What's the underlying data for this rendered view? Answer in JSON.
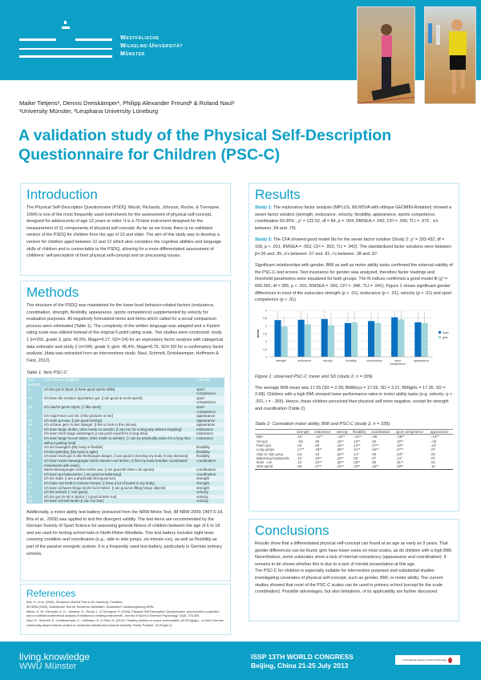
{
  "header": {
    "university": [
      "Westfälische",
      "Wilhelms-Universität",
      "Münster"
    ]
  },
  "authors": {
    "names": "Maike Tietjens¹, Dennis Dreiskämper¹,  Philipp Alexander Freund² & Roland Naul¹",
    "affiliations": "¹University Münster, ²Leuphana University Lüneburg"
  },
  "title": "A validation study of the Physical Self-Description Questionnaire for Children (PSC-C)",
  "introduction": {
    "heading": "Introduction",
    "text": "The Physical Self-Description Questionnaire (PSDQ; Marsh, Richards, Johnson, Roche, & Tremayne, 1994) is one of the most frequently used instruments for the assessment of physical self-concept, designed for adolescents of age 12 years or older. It is a 70-item instrument designed for the measurement of 11 components of physical self-concept. As far as we know, there is no validated version of the PSDQ for children from the age of 10 and older. The aim of this study was to develop a version for children aged between 10 and 12 which also considers the cognitive abilities and language skills of children and is connectable to the PSDQ, allowing for a more differentiated assessment of childrens' self-perception of their physical self-concept and on processing issues."
  },
  "methods": {
    "heading": "Methods",
    "text": "The structure of the PSDQ was maintained for the lower level behavior-related factors (endurance, coordination, strength, flexibility, appearance, sports competence) supplemented by velocity for evaluation purposes. All negatively formulated items and items which called for a social comparison process were eliminated (Table 1). The complexity of the written language was adapted and a 4-point rating scale was utilized instead of the original 6-point rating scale. Two studies were conducted: study 1 (n=255, grade 3, girls: 45.5%, Mage=9.27, SD=.54) for an exploratory factor analysis with categorical data estimator and study 2 (n=349, grade 3; girls: 45.4%, Mage=8.75, SD=.50) for a confirmatory factor analysis, (data was extracted from an interventions study: Naul, Schmelt, Dreiskaemper, Hoffmann & l'Hoir, 2012).",
    "table1_caption": "Table 1: Item PSC-C",
    "table1_headers": [
      "item-position",
      "Item German [english]",
      "subscale"
    ],
    "table1_rows": [
      [
        "6",
        "Ich bin gut in Sport. [I have good sports skills]",
        "sport competence"
      ],
      [
        "10",
        "Ich kann die meisten Sportarten gut. [I am good  at most sports]",
        "sport competence"
      ],
      [
        "16",
        "Ich mache gerne Sport. [ I like sport]",
        "sport competence"
      ],
      [
        "7",
        "Ich mag Fotos von mir. [I like pictures of me]",
        "appearance"
      ],
      [
        "13",
        "Ich sehe gut aus. [I am good looking]",
        "appearance"
      ],
      [
        "19",
        "Ich schaue gern in den Spiegel.  [I like to look in the mirrow]",
        "appearance"
      ],
      [
        "2",
        "Ich kann lange laufen, ohne müde zu werden. [I can run for a long way without stopping]",
        "endurance"
      ],
      [
        "8",
        "Ich kann mich lange anstrengen.[I can push myself for a long time]",
        "endurance"
      ],
      [
        "18",
        "Ich kann lange herum toben, ohne müde zu werden. [ I can be physically active for a long time without getting tired]",
        "endurance"
      ],
      [
        "4",
        "Ich bin beweglich.[My body is flexible]",
        "flexibility"
      ],
      [
        "9",
        "Ich bin gelenkig. [My body is agile]",
        "flexibility"
      ],
      [
        "15",
        "Ich kann mich gut in alle Richtungen biegen. [I am good in bending my body in any direction]",
        "flexibility"
      ],
      [
        "5",
        "Ich kann meine Bewegungen leicht steuern und lenken. [I find my body handles coordinated movements with ease]",
        "coordination"
      ],
      [
        "14",
        "Meine Bewegungen sehen schön aus. [I am graceful when I do sports]",
        "coordination"
      ],
      [
        "21",
        "Ich kann gut balancieren. [ am good at balancing]",
        "coordination"
      ],
      [
        "1",
        "Ich bin stark. [I am a physically strong person]",
        "strength"
      ],
      [
        "11",
        "Ich habe viel Kraft in meinem Körper. [I have a lot of power in my body]",
        "strength"
      ],
      [
        "17",
        "Ich kann schwere Dinge leicht hoch heben.  [I am good at lifting heavy objects]",
        "strength"
      ],
      [
        "3",
        "Ich bin schnell. [ I am quick]",
        "velocity"
      ],
      [
        "12",
        "Ich bin gut im 50 m Sprint. [ I good at 50m run]",
        "velocity"
      ],
      [
        "20",
        "Ich kann schnell laufen.[I can run fast]",
        "velocity"
      ]
    ],
    "text2": "Additionally, a motor ability test-battery (extracted from the NRW-Motor-Test, IM NRW 2009; DMT 6-18, Bös et al., 2009) was applied to test the divergent validity. The test items are recommended by the German Society of Sport Science for assessing general fitness of children between the age of 6 to 18 and are used for testing school kids in North-Rhine-Westfalia. This test battery includes eight tests covering condition and coordination (e.g., side to side jumps, six-minute run), as well as flexibility as part of the passive energetic system. It is a frequently used test-battery, particularly in German primary schools."
  },
  "references": {
    "heading": "References",
    "items": [
      "Bös, K., et al. (2009). Deutscher Motorik Test 6-18. Hamburg: Czwalina.",
      "IM NRW (2009). Motorischer Test für Nordrhein-Westfalen. Düsseldorf: Landesregierung NRW.",
      "Marsh, H. W., Richards, G. E., Johnson, S., Roche, L. & Tremayne, P. (1994). Physical Self-Description Questionnaire: psychometric properties and a multitrait-multimethod analysis of relations to existing instruments. Journal of Sport & Exercise Psychology, 16(3), 270-305.",
      "Naul, R., Schmelt, D., Dreiskaemper, D., Hoffmann, D. & l'Hoir, M. (2012). 'Healthy children in sound communities' (HCSC/gkgk) - a Dutch-German community-based network project to counteract obesity and physical inactivity. Family Practice, 29 (Suppl 1)."
    ]
  },
  "results": {
    "heading": "Results",
    "study1_label": "Study 1:",
    "study1_text": " The exploratory factor analysis  (MPLUS, WLMSVA with oblique GEOMIN-Rotation) showed a seven factor solution (strength, endurance, velocity, flexibility, appearance, sports competence, coordination 60.35% , χ² = 122.52, df = 84, p = .004, RMSEA = .042, CFI = .990, TLI = .975 , α's between .54 and .79).",
    "study2_label": "Study 2:",
    "study2_text": " The CFA showed good model fits for the seven factor solution  (Study 2: χ² = 393.432, df = 168, p < .001, RMSEA = .063, CFI = .953, TLI = .942). The standardized factor solutions were between β=.55 and .95, α's between .57 and .81, r's between .38 and .87.",
    "text3": "Significant relationships with gender, BMI as well as motor ability tasks confirmed the external validity of the PSC-C test scores. Test invariance for gender was analyzed, therefore factor loadings and threshold parameters were equalized for both groups. The fit indices confirmed a good model fit (χ² = 666.260, df = 385, p < .001, RMSEA = .066, CFI = .946, TLI = .941). Figure 1 shows significant gender differences  in most of the subscales strength (p < .01), endurance (p < .01), velocity (p < .01) and sport competence (p < .01).",
    "figure_caption": "Figure 1: observed PSC-C mean and SD (study 2, n = 339)",
    "text4": "The average BMI mean was 17.55 (SD = 2.99; BMIboys = 17.69, SD = 3.21; BMIgirls = 17.36, SD = 2.68). Children with a high BMI showed lower  performance rates in motor ability tasks (e.g. velocity: p < .001, r = -.365). Hence, these children perceived their physical self more negative, except for strength and coordination (Table 2).",
    "table2_caption": "Table 2: Correlation motor ability, BMI and PSC-C (study 2,  n = 339).",
    "table2_headers": [
      "",
      "strength",
      "endurance",
      "velocity",
      "flexibility",
      "coordination",
      "sport competence",
      "appearance"
    ],
    "table2_rows": [
      [
        "BMI",
        ".10",
        "-.21**",
        "-.32**",
        "-.21**",
        "-.08",
        "-.18**",
        "-.14**"
      ],
      [
        "Sit Ups",
        "-.03",
        ".09",
        ".16**",
        ".16**",
        ".03",
        ".16**",
        "-.02"
      ],
      [
        "Push ups",
        ".03",
        ".09",
        ".16**",
        ".14**",
        ".17**",
        ".19**",
        ".13*"
      ],
      [
        "Long jumps",
        ".17**",
        ".19**",
        ".36**",
        ".21**",
        ".16**",
        ".27**",
        ".07"
      ],
      [
        "Side to side jump",
        ".04",
        ".10",
        ".20**",
        ".14*",
        ".06",
        ".24**",
        ".00"
      ],
      [
        "Balancing backwards",
        ".11*",
        ".15**",
        ".18**",
        ".03",
        ".07",
        ".14*",
        ".07"
      ],
      [
        "6min - run",
        ".10",
        ".24**",
        ".35**",
        ".25**",
        ".09",
        ".31**",
        ".01"
      ],
      [
        "20m-sprint",
        ".09",
        ".17**",
        ".43**",
        ".23**",
        ".15**",
        ".28**",
        ".10"
      ]
    ]
  },
  "chart_data": {
    "type": "bar",
    "categories": [
      "strength",
      "endurance",
      "velocity",
      "flexibility",
      "coordination",
      "sport competence",
      "appearance"
    ],
    "series": [
      {
        "name": "boys",
        "values": [
          3.37,
          3.39,
          3.44,
          3.18,
          3.31,
          3.55,
          3.23
        ],
        "sd": [
          0.62,
          0.62,
          0.58,
          0.72,
          0.55,
          0.46,
          0.65
        ],
        "color": "#0a6fc0"
      },
      {
        "name": "girls",
        "values": [
          2.96,
          3.1,
          3.04,
          3.22,
          3.19,
          3.42,
          3.18
        ],
        "sd": [
          0.63,
          0.7,
          0.76,
          0.74,
          0.65,
          0.55,
          0.72
        ],
        "color": "#9fd6dc"
      }
    ],
    "ylabel": "mean",
    "ylim": [
      1,
      4
    ],
    "yticks": [
      "1",
      "1,5",
      "2",
      "2,5",
      "3",
      "3,5",
      "4"
    ],
    "legend": "right",
    "grid": true,
    "error_bars": true
  },
  "conclusions": {
    "heading": "Conclusions",
    "p1": "Results show that a differentiated physical self-concept can found at an age as early as 9 years. That gender differences can be found; girls have lower sores on most scales, as do children with a high BMI. Nevertheless, some subscales show a lack of internal consistency (appearance and coordination). It remains to be shown whether this is due to a lack of mental presentation at this age.",
    "p2": "The PSC-C for children is especially suitable for intervention purposes and substantial studies investigating covariates of physical self-concept, such as gender, BMI, or motor ability. The current studies showed that most of the PSC-C scales can be used in primary school (except for the scale coordination). Possible advantages, but also limitations, of its applicability are further discussed."
  },
  "footer": {
    "left1": "living.knowledge",
    "left2": "WWU Münster",
    "congress1": "ISSP 13TH WORLD CONGRESS",
    "congress2": "Beijing, China 21-25 July 2013",
    "issp_logo": "International Society of Sport Psychology"
  },
  "colors": {
    "accent": "#0da0c6",
    "boys": "#0a6fc0",
    "girls": "#9fd6dc"
  }
}
